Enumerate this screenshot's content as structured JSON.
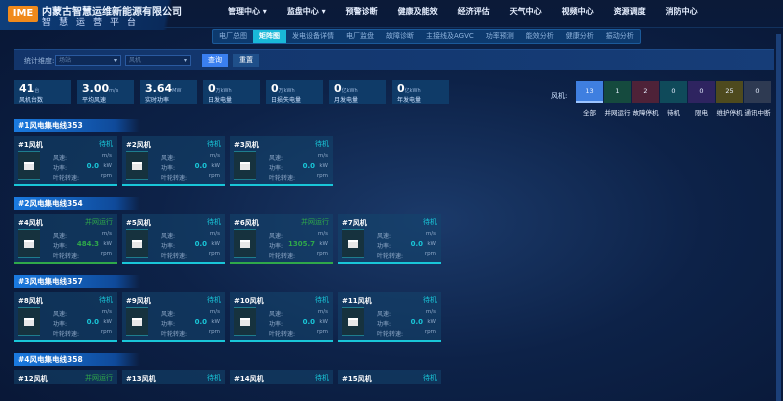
{
  "header": {
    "logo": "IME",
    "company": "内蒙古智慧运维新能源有限公司",
    "platform": "智慧运营平台",
    "nav": [
      "管理中心 ▾",
      "监盘中心 ▾",
      "预警诊断",
      "健康及能效",
      "经济评估",
      "天气中心",
      "视频中心",
      "资源调度",
      "消防中心"
    ]
  },
  "tabs": {
    "items": [
      "电厂总图",
      "矩阵图",
      "发电设备详情",
      "电厂监盘",
      "故障诊断",
      "主接线及AGVC",
      "功率预测",
      "能效分析",
      "健康分析",
      "振动分析"
    ],
    "active": 1
  },
  "filter": {
    "label": "统计维度:",
    "select1": "场站",
    "select2": "风机",
    "query": "查询",
    "reset": "重置"
  },
  "stats": [
    {
      "v": "41",
      "u": "台",
      "l": "风机台数"
    },
    {
      "v": "3.00",
      "u": "m/s",
      "l": "平均风速"
    },
    {
      "v": "3.64",
      "u": "MW",
      "l": "实时功率"
    },
    {
      "v": "0",
      "u": "万kWh",
      "l": "日发电量"
    },
    {
      "v": "0",
      "u": "万kWh",
      "l": "日损失电量"
    },
    {
      "v": "0",
      "u": "亿kWh",
      "l": "月发电量"
    },
    {
      "v": "0",
      "u": "亿kWh",
      "l": "年发电量"
    }
  ],
  "status_filter": {
    "label": "风机:",
    "items": [
      {
        "n": "13",
        "l": "全部",
        "c": "#3f7fe0"
      },
      {
        "n": "1",
        "l": "并网运行",
        "c": "#154a3e"
      },
      {
        "n": "2",
        "l": "故障停机",
        "c": "#4e2238"
      },
      {
        "n": "0",
        "l": "待机",
        "c": "#0f4a5a"
      },
      {
        "n": "0",
        "l": "限电",
        "c": "#2e2460"
      },
      {
        "n": "25",
        "l": "维护停机",
        "c": "#4e4a1e"
      },
      {
        "n": "0",
        "l": "通讯中断",
        "c": "#2e3a52"
      }
    ]
  },
  "labels": {
    "wind": "风速:",
    "power": "功率:",
    "rpm": "叶轮转速:",
    "u_wind": "m/s",
    "u_power": "kW",
    "u_rpm": "rpm"
  },
  "colors": {
    "standby": "#19c6d8",
    "running": "#2fa84a"
  },
  "groups": [
    {
      "title": "#1风电集电线353",
      "cards": [
        {
          "n": "#1风机",
          "s": "待机",
          "p": "0.0"
        },
        {
          "n": "#2风机",
          "s": "待机",
          "p": "0.0"
        },
        {
          "n": "#3风机",
          "s": "待机",
          "p": "0.0"
        }
      ]
    },
    {
      "title": "#2风电集电线354",
      "cards": [
        {
          "n": "#4风机",
          "s": "并网运行",
          "p": "484.3"
        },
        {
          "n": "#5风机",
          "s": "待机",
          "p": "0.0"
        },
        {
          "n": "#6风机",
          "s": "并网运行",
          "p": "1305.7"
        },
        {
          "n": "#7风机",
          "s": "待机",
          "p": "0.0"
        }
      ]
    },
    {
      "title": "#3风电集电线357",
      "cards": [
        {
          "n": "#8风机",
          "s": "待机",
          "p": "0.0"
        },
        {
          "n": "#9风机",
          "s": "待机",
          "p": "0.0"
        },
        {
          "n": "#10风机",
          "s": "待机",
          "p": "0.0"
        },
        {
          "n": "#11风机",
          "s": "待机",
          "p": "0.0"
        }
      ]
    },
    {
      "title": "#4风电集电线358",
      "cards": [
        {
          "n": "#12风机",
          "s": "并网运行"
        },
        {
          "n": "#13风机",
          "s": "待机"
        },
        {
          "n": "#14风机",
          "s": "待机"
        },
        {
          "n": "#15风机",
          "s": "待机"
        }
      ]
    }
  ]
}
